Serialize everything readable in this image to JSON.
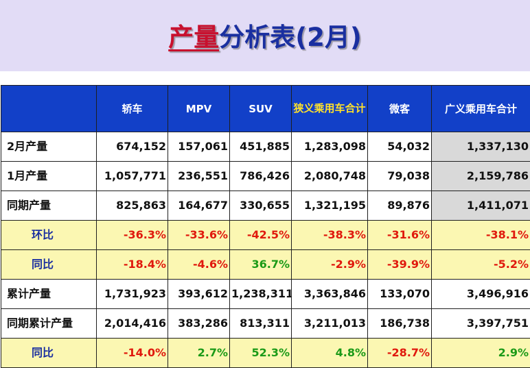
{
  "title": {
    "highlight": "产量",
    "rest": "分析表(2月)"
  },
  "columns": [
    "",
    "轿车",
    "MPV",
    "SUV",
    "狭义乘用车合计",
    "微客",
    "广义乘用车合计"
  ],
  "rows": [
    {
      "label": "2月产量",
      "type": "data",
      "values": [
        "674,152",
        "157,061",
        "451,885",
        "1,283,098",
        "54,032",
        "1,337,130"
      ]
    },
    {
      "label": "1月产量",
      "type": "data",
      "values": [
        "1,057,771",
        "236,551",
        "786,426",
        "2,080,748",
        "79,038",
        "2,159,786"
      ]
    },
    {
      "label": "同期产量",
      "type": "data",
      "values": [
        "825,863",
        "164,677",
        "330,655",
        "1,321,195",
        "89,876",
        "1,411,071"
      ]
    },
    {
      "label": "环比",
      "type": "ratio",
      "values": [
        "-36.3%",
        "-33.6%",
        "-42.5%",
        "-38.3%",
        "-31.6%",
        "-38.1%"
      ]
    },
    {
      "label": "同比",
      "type": "ratio",
      "values": [
        "-18.4%",
        "-4.6%",
        "36.7%",
        "-2.9%",
        "-39.9%",
        "-5.2%"
      ]
    },
    {
      "label": "累计产量",
      "type": "data",
      "values": [
        "1,731,923",
        "393,612",
        "1,238,311",
        "3,363,846",
        "133,070",
        "3,496,916"
      ]
    },
    {
      "label": "同期累计产量",
      "type": "data",
      "values": [
        "2,014,416",
        "383,286",
        "813,311",
        "3,211,013",
        "186,738",
        "3,397,751"
      ]
    },
    {
      "label": "同比",
      "type": "ratio",
      "values": [
        "-14.0%",
        "2.7%",
        "52.3%",
        "4.8%",
        "-28.7%",
        "2.9%"
      ]
    }
  ],
  "colors": {
    "header_bg": "#1240c8",
    "header_text": "#ffffff",
    "header_highlight_text": "#ffe12a",
    "ratio_row_bg": "#fbf7b2",
    "negative": "#e0190d",
    "positive": "#1b9a17",
    "gray_column": "#d9d9d9",
    "title_band": "#e2dcf6"
  }
}
